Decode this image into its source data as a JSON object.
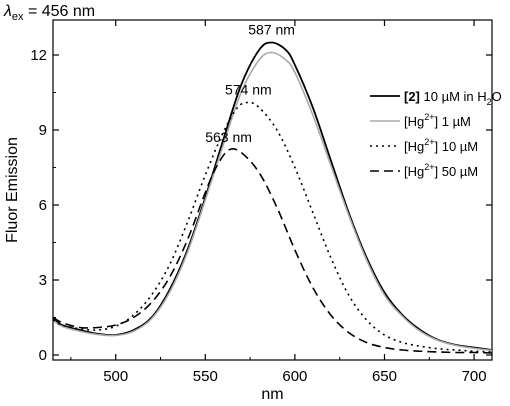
{
  "chart_data": {
    "type": "line",
    "xlabel": "nm",
    "ylabel": "Fluor Emission",
    "xlim": [
      465,
      710
    ],
    "ylim": [
      -0.2,
      13.4
    ],
    "xticks": [
      500,
      550,
      600,
      650,
      700
    ],
    "yticks": [
      0,
      3,
      6,
      9,
      12
    ],
    "excitation_label": {
      "symbol": "λ",
      "subscript": "ex",
      "value": "= 456 nm"
    },
    "legend": {
      "placement": "right",
      "entries": [
        {
          "bold_prefix": "[2]",
          "text": " 10 µM in H",
          "sub": "2",
          "tail": "O",
          "style": "solid-black"
        },
        {
          "bold_prefix": "",
          "text": "[Hg",
          "sup": "2+",
          "tail": "] 1 µM",
          "style": "solid-gray"
        },
        {
          "bold_prefix": "",
          "text": "[Hg",
          "sup": "2+",
          "tail": "] 10 µM",
          "style": "dotted"
        },
        {
          "bold_prefix": "",
          "text": "[Hg",
          "sup": "2+",
          "tail": "] 50 µM",
          "style": "dashed"
        }
      ]
    },
    "annotations": [
      {
        "text": "587 nm",
        "x": 587,
        "y": 12.5
      },
      {
        "text": "574 nm",
        "x": 574,
        "y": 10.1
      },
      {
        "text": "563 nm",
        "x": 563,
        "y": 8.2
      }
    ],
    "series": [
      {
        "color": "#000000",
        "dash": "",
        "x": [
          465,
          470,
          480,
          490,
          500,
          510,
          520,
          530,
          540,
          550,
          560,
          570,
          580,
          587,
          595,
          600,
          610,
          620,
          630,
          640,
          650,
          660,
          670,
          680,
          690,
          700,
          710
        ],
        "y": [
          1.5,
          1.2,
          1.0,
          0.85,
          0.8,
          1.0,
          1.5,
          2.6,
          4.2,
          6.3,
          8.6,
          10.8,
          12.2,
          12.5,
          12.2,
          11.6,
          9.9,
          7.8,
          5.7,
          3.9,
          2.5,
          1.6,
          1.0,
          0.6,
          0.4,
          0.3,
          0.2
        ]
      },
      {
        "color": "#aaaaaa",
        "dash": "",
        "x": [
          465,
          470,
          480,
          490,
          500,
          510,
          520,
          530,
          540,
          550,
          560,
          570,
          580,
          587,
          595,
          600,
          610,
          620,
          630,
          640,
          650,
          660,
          670,
          680,
          690,
          700,
          710
        ],
        "y": [
          1.4,
          1.15,
          0.95,
          0.82,
          0.78,
          0.95,
          1.45,
          2.5,
          4.1,
          6.2,
          8.4,
          10.5,
          11.8,
          12.1,
          11.8,
          11.3,
          9.6,
          7.6,
          5.6,
          3.8,
          2.4,
          1.55,
          0.95,
          0.58,
          0.38,
          0.27,
          0.18
        ]
      },
      {
        "color": "#000000",
        "dash": "2,4",
        "x": [
          465,
          470,
          480,
          490,
          500,
          510,
          520,
          530,
          540,
          550,
          560,
          568,
          574,
          580,
          590,
          600,
          610,
          620,
          630,
          640,
          650,
          660,
          670,
          680,
          690,
          700,
          710
        ],
        "y": [
          1.4,
          1.2,
          1.05,
          1.0,
          1.15,
          1.6,
          2.4,
          3.6,
          5.3,
          7.2,
          8.9,
          9.9,
          10.1,
          9.9,
          9.0,
          7.5,
          5.7,
          3.9,
          2.4,
          1.4,
          0.8,
          0.5,
          0.35,
          0.25,
          0.2,
          0.15,
          0.12
        ]
      },
      {
        "color": "#000000",
        "dash": "9,5",
        "x": [
          465,
          470,
          480,
          490,
          500,
          510,
          520,
          530,
          540,
          550,
          556,
          563,
          570,
          580,
          590,
          600,
          610,
          620,
          630,
          640,
          650,
          660,
          670,
          680,
          690,
          700,
          710
        ],
        "y": [
          1.5,
          1.3,
          1.1,
          1.1,
          1.2,
          1.5,
          2.1,
          3.1,
          4.6,
          6.5,
          7.5,
          8.2,
          8.1,
          7.3,
          5.9,
          4.2,
          2.7,
          1.6,
          0.9,
          0.5,
          0.3,
          0.2,
          0.15,
          0.12,
          0.1,
          0.1,
          0.08
        ]
      }
    ]
  }
}
